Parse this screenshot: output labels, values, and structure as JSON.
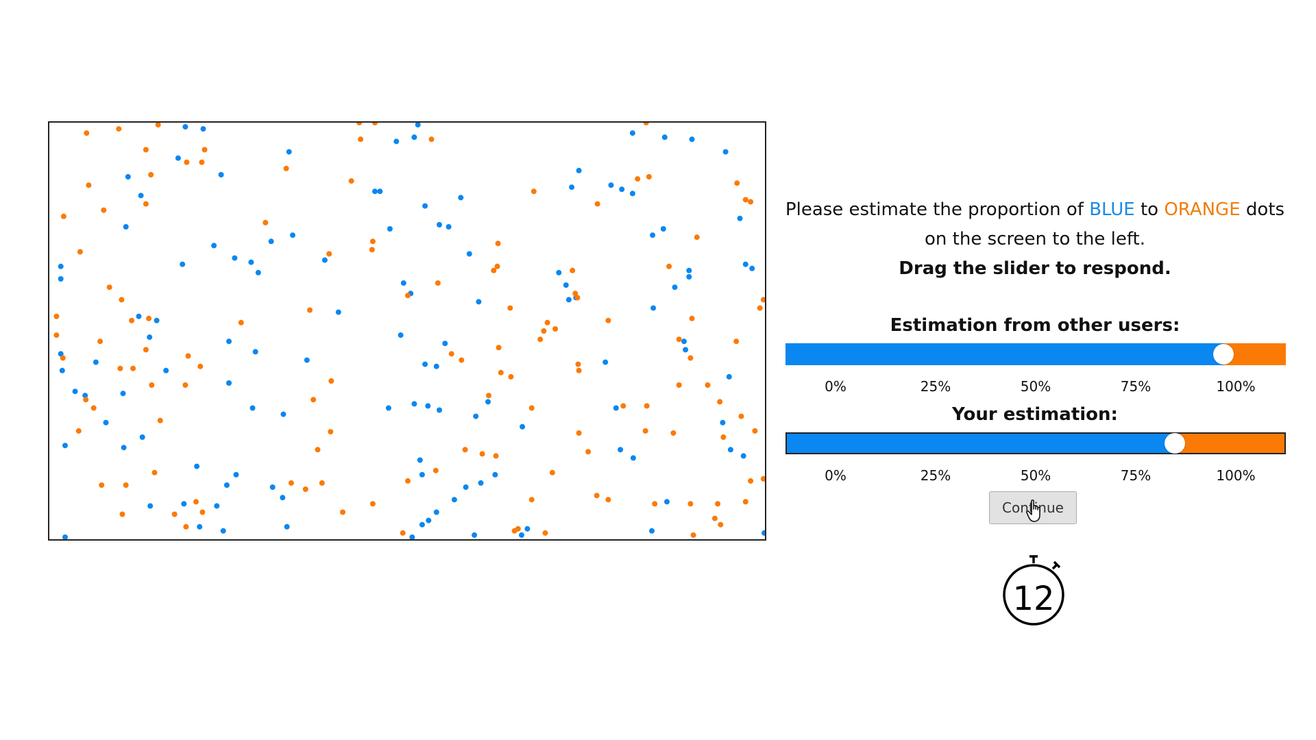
{
  "instructions": {
    "line1_prefix": "Please estimate the proportion of ",
    "blue_word": "BLUE",
    "line1_middle": " to ",
    "orange_word": "ORANGE",
    "line1_suffix": " dots",
    "line2": "on the screen to the left.",
    "line3": "Drag the slider to respond."
  },
  "others_slider": {
    "title": "Estimation from other users:",
    "value_fraction": 0.875,
    "ticks": [
      "0%",
      "25%",
      "50%",
      "75%",
      "100%"
    ]
  },
  "your_slider": {
    "title": "Your estimation:",
    "value_fraction": 0.78,
    "ticks": [
      "0%",
      "25%",
      "50%",
      "75%",
      "100%"
    ]
  },
  "continue_button": {
    "label": "Continue"
  },
  "timer": {
    "count": "12"
  },
  "colors": {
    "blue": "#0a87f0",
    "orange": "#fb7a05",
    "blue_text": "#1a8ae6",
    "orange_text": "#f07d0d"
  },
  "dot_field": {
    "icon": "dot-field",
    "blue_dots": [
      [
        0.19,
        0.01
      ],
      [
        0.215,
        0.015
      ],
      [
        0.515,
        0.005
      ],
      [
        0.51,
        0.035
      ],
      [
        0.485,
        0.045
      ],
      [
        0.815,
        0.025
      ],
      [
        0.86,
        0.035
      ],
      [
        0.898,
        0.04
      ],
      [
        0.945,
        0.07
      ],
      [
        0.335,
        0.07
      ],
      [
        0.18,
        0.085
      ],
      [
        0.24,
        0.125
      ],
      [
        0.11,
        0.13
      ],
      [
        0.74,
        0.115
      ],
      [
        0.73,
        0.155
      ],
      [
        0.785,
        0.15
      ],
      [
        0.8,
        0.16
      ],
      [
        0.815,
        0.17
      ],
      [
        0.455,
        0.165
      ],
      [
        0.462,
        0.165
      ],
      [
        0.575,
        0.18
      ],
      [
        0.525,
        0.2
      ],
      [
        0.545,
        0.245
      ],
      [
        0.558,
        0.25
      ],
      [
        0.476,
        0.255
      ],
      [
        0.107,
        0.25
      ],
      [
        0.128,
        0.175
      ],
      [
        0.858,
        0.255
      ],
      [
        0.843,
        0.27
      ],
      [
        0.965,
        0.23
      ],
      [
        0.23,
        0.295
      ],
      [
        0.34,
        0.27
      ],
      [
        0.31,
        0.285
      ],
      [
        0.587,
        0.315
      ],
      [
        0.016,
        0.345
      ],
      [
        0.016,
        0.375
      ],
      [
        0.186,
        0.34
      ],
      [
        0.259,
        0.325
      ],
      [
        0.282,
        0.335
      ],
      [
        0.292,
        0.36
      ],
      [
        0.385,
        0.33
      ],
      [
        0.973,
        0.34
      ],
      [
        0.982,
        0.35
      ],
      [
        0.894,
        0.355
      ],
      [
        0.894,
        0.37
      ],
      [
        0.712,
        0.36
      ],
      [
        0.722,
        0.39
      ],
      [
        0.495,
        0.385
      ],
      [
        0.505,
        0.41
      ],
      [
        0.6,
        0.43
      ],
      [
        0.726,
        0.425
      ],
      [
        0.874,
        0.395
      ],
      [
        0.844,
        0.445
      ],
      [
        0.15,
        0.475
      ],
      [
        0.125,
        0.465
      ],
      [
        0.404,
        0.455
      ],
      [
        0.736,
        0.42
      ],
      [
        0.14,
        0.515
      ],
      [
        0.251,
        0.525
      ],
      [
        0.288,
        0.55
      ],
      [
        0.491,
        0.51
      ],
      [
        0.553,
        0.53
      ],
      [
        0.887,
        0.525
      ],
      [
        0.889,
        0.545
      ],
      [
        0.016,
        0.555
      ],
      [
        0.018,
        0.595
      ],
      [
        0.065,
        0.575
      ],
      [
        0.36,
        0.57
      ],
      [
        0.525,
        0.58
      ],
      [
        0.541,
        0.585
      ],
      [
        0.777,
        0.575
      ],
      [
        0.251,
        0.625
      ],
      [
        0.284,
        0.685
      ],
      [
        0.036,
        0.645
      ],
      [
        0.05,
        0.655
      ],
      [
        0.103,
        0.65
      ],
      [
        0.163,
        0.595
      ],
      [
        0.95,
        0.61
      ],
      [
        0.941,
        0.72
      ],
      [
        0.51,
        0.675
      ],
      [
        0.529,
        0.68
      ],
      [
        0.545,
        0.69
      ],
      [
        0.613,
        0.67
      ],
      [
        0.596,
        0.705
      ],
      [
        0.792,
        0.685
      ],
      [
        0.327,
        0.7
      ],
      [
        0.474,
        0.685
      ],
      [
        0.079,
        0.72
      ],
      [
        0.661,
        0.73
      ],
      [
        0.13,
        0.755
      ],
      [
        0.022,
        0.775
      ],
      [
        0.952,
        0.785
      ],
      [
        0.97,
        0.8
      ],
      [
        0.518,
        0.81
      ],
      [
        0.521,
        0.845
      ],
      [
        0.104,
        0.78
      ],
      [
        0.206,
        0.825
      ],
      [
        0.261,
        0.845
      ],
      [
        0.248,
        0.87
      ],
      [
        0.312,
        0.875
      ],
      [
        0.623,
        0.845
      ],
      [
        0.582,
        0.875
      ],
      [
        0.798,
        0.785
      ],
      [
        0.816,
        0.805
      ],
      [
        0.141,
        0.92
      ],
      [
        0.188,
        0.915
      ],
      [
        0.234,
        0.92
      ],
      [
        0.326,
        0.9
      ],
      [
        0.541,
        0.935
      ],
      [
        0.521,
        0.965
      ],
      [
        0.566,
        0.905
      ],
      [
        0.603,
        0.865
      ],
      [
        0.863,
        0.91
      ],
      [
        0.21,
        0.97
      ],
      [
        0.243,
        0.98
      ],
      [
        0.332,
        0.97
      ],
      [
        0.53,
        0.955
      ],
      [
        0.594,
        0.99
      ],
      [
        0.66,
        0.99
      ],
      [
        0.668,
        0.975
      ],
      [
        0.842,
        0.98
      ],
      [
        0.022,
        0.995
      ],
      [
        0.507,
        0.995
      ],
      [
        0.999,
        0.985
      ]
    ],
    "orange_dots": [
      [
        0.052,
        0.025
      ],
      [
        0.097,
        0.015
      ],
      [
        0.152,
        0.005
      ],
      [
        0.433,
        0.0
      ],
      [
        0.455,
        0.0
      ],
      [
        0.834,
        0.0
      ],
      [
        0.435,
        0.04
      ],
      [
        0.534,
        0.04
      ],
      [
        0.135,
        0.065
      ],
      [
        0.217,
        0.065
      ],
      [
        0.192,
        0.095
      ],
      [
        0.213,
        0.095
      ],
      [
        0.331,
        0.11
      ],
      [
        0.142,
        0.125
      ],
      [
        0.055,
        0.15
      ],
      [
        0.422,
        0.14
      ],
      [
        0.677,
        0.165
      ],
      [
        0.822,
        0.135
      ],
      [
        0.838,
        0.13
      ],
      [
        0.961,
        0.145
      ],
      [
        0.973,
        0.185
      ],
      [
        0.98,
        0.19
      ],
      [
        0.135,
        0.195
      ],
      [
        0.076,
        0.21
      ],
      [
        0.766,
        0.195
      ],
      [
        0.02,
        0.225
      ],
      [
        0.302,
        0.24
      ],
      [
        0.452,
        0.285
      ],
      [
        0.451,
        0.305
      ],
      [
        0.627,
        0.29
      ],
      [
        0.905,
        0.275
      ],
      [
        0.043,
        0.31
      ],
      [
        0.391,
        0.315
      ],
      [
        0.626,
        0.345
      ],
      [
        0.621,
        0.355
      ],
      [
        0.543,
        0.385
      ],
      [
        0.866,
        0.345
      ],
      [
        0.731,
        0.355
      ],
      [
        0.084,
        0.395
      ],
      [
        0.101,
        0.425
      ],
      [
        0.735,
        0.41
      ],
      [
        0.738,
        0.42
      ],
      [
        0.501,
        0.415
      ],
      [
        0.644,
        0.445
      ],
      [
        0.998,
        0.425
      ],
      [
        0.993,
        0.445
      ],
      [
        0.01,
        0.465
      ],
      [
        0.364,
        0.45
      ],
      [
        0.696,
        0.48
      ],
      [
        0.691,
        0.5
      ],
      [
        0.707,
        0.495
      ],
      [
        0.898,
        0.47
      ],
      [
        0.139,
        0.47
      ],
      [
        0.115,
        0.475
      ],
      [
        0.268,
        0.48
      ],
      [
        0.01,
        0.51
      ],
      [
        0.071,
        0.525
      ],
      [
        0.135,
        0.545
      ],
      [
        0.96,
        0.525
      ],
      [
        0.686,
        0.52
      ],
      [
        0.781,
        0.475
      ],
      [
        0.88,
        0.52
      ],
      [
        0.628,
        0.54
      ],
      [
        0.562,
        0.555
      ],
      [
        0.576,
        0.57
      ],
      [
        0.194,
        0.56
      ],
      [
        0.019,
        0.565
      ],
      [
        0.099,
        0.59
      ],
      [
        0.117,
        0.59
      ],
      [
        0.211,
        0.585
      ],
      [
        0.896,
        0.565
      ],
      [
        0.631,
        0.6
      ],
      [
        0.739,
        0.58
      ],
      [
        0.74,
        0.595
      ],
      [
        0.394,
        0.62
      ],
      [
        0.143,
        0.63
      ],
      [
        0.19,
        0.63
      ],
      [
        0.614,
        0.655
      ],
      [
        0.645,
        0.61
      ],
      [
        0.88,
        0.63
      ],
      [
        0.369,
        0.665
      ],
      [
        0.92,
        0.63
      ],
      [
        0.062,
        0.685
      ],
      [
        0.051,
        0.665
      ],
      [
        0.674,
        0.685
      ],
      [
        0.802,
        0.68
      ],
      [
        0.155,
        0.715
      ],
      [
        0.041,
        0.74
      ],
      [
        0.835,
        0.68
      ],
      [
        0.937,
        0.67
      ],
      [
        0.967,
        0.705
      ],
      [
        0.833,
        0.74
      ],
      [
        0.872,
        0.745
      ],
      [
        0.393,
        0.742
      ],
      [
        0.581,
        0.785
      ],
      [
        0.605,
        0.795
      ],
      [
        0.624,
        0.8
      ],
      [
        0.753,
        0.79
      ],
      [
        0.703,
        0.84
      ],
      [
        0.942,
        0.755
      ],
      [
        0.375,
        0.785
      ],
      [
        0.54,
        0.835
      ],
      [
        0.74,
        0.745
      ],
      [
        0.986,
        0.74
      ],
      [
        0.98,
        0.86
      ],
      [
        0.998,
        0.855
      ],
      [
        0.147,
        0.84
      ],
      [
        0.073,
        0.87
      ],
      [
        0.107,
        0.87
      ],
      [
        0.381,
        0.865
      ],
      [
        0.501,
        0.86
      ],
      [
        0.934,
        0.915
      ],
      [
        0.896,
        0.915
      ],
      [
        0.973,
        0.91
      ],
      [
        0.338,
        0.865
      ],
      [
        0.358,
        0.88
      ],
      [
        0.205,
        0.91
      ],
      [
        0.175,
        0.94
      ],
      [
        0.214,
        0.935
      ],
      [
        0.191,
        0.97
      ],
      [
        0.102,
        0.94
      ],
      [
        0.41,
        0.935
      ],
      [
        0.452,
        0.915
      ],
      [
        0.674,
        0.905
      ],
      [
        0.765,
        0.895
      ],
      [
        0.781,
        0.905
      ],
      [
        0.846,
        0.915
      ],
      [
        0.93,
        0.95
      ],
      [
        0.938,
        0.965
      ],
      [
        0.494,
        0.985
      ],
      [
        0.65,
        0.98
      ],
      [
        0.655,
        0.975
      ],
      [
        0.693,
        0.985
      ],
      [
        0.9,
        0.99
      ]
    ]
  }
}
